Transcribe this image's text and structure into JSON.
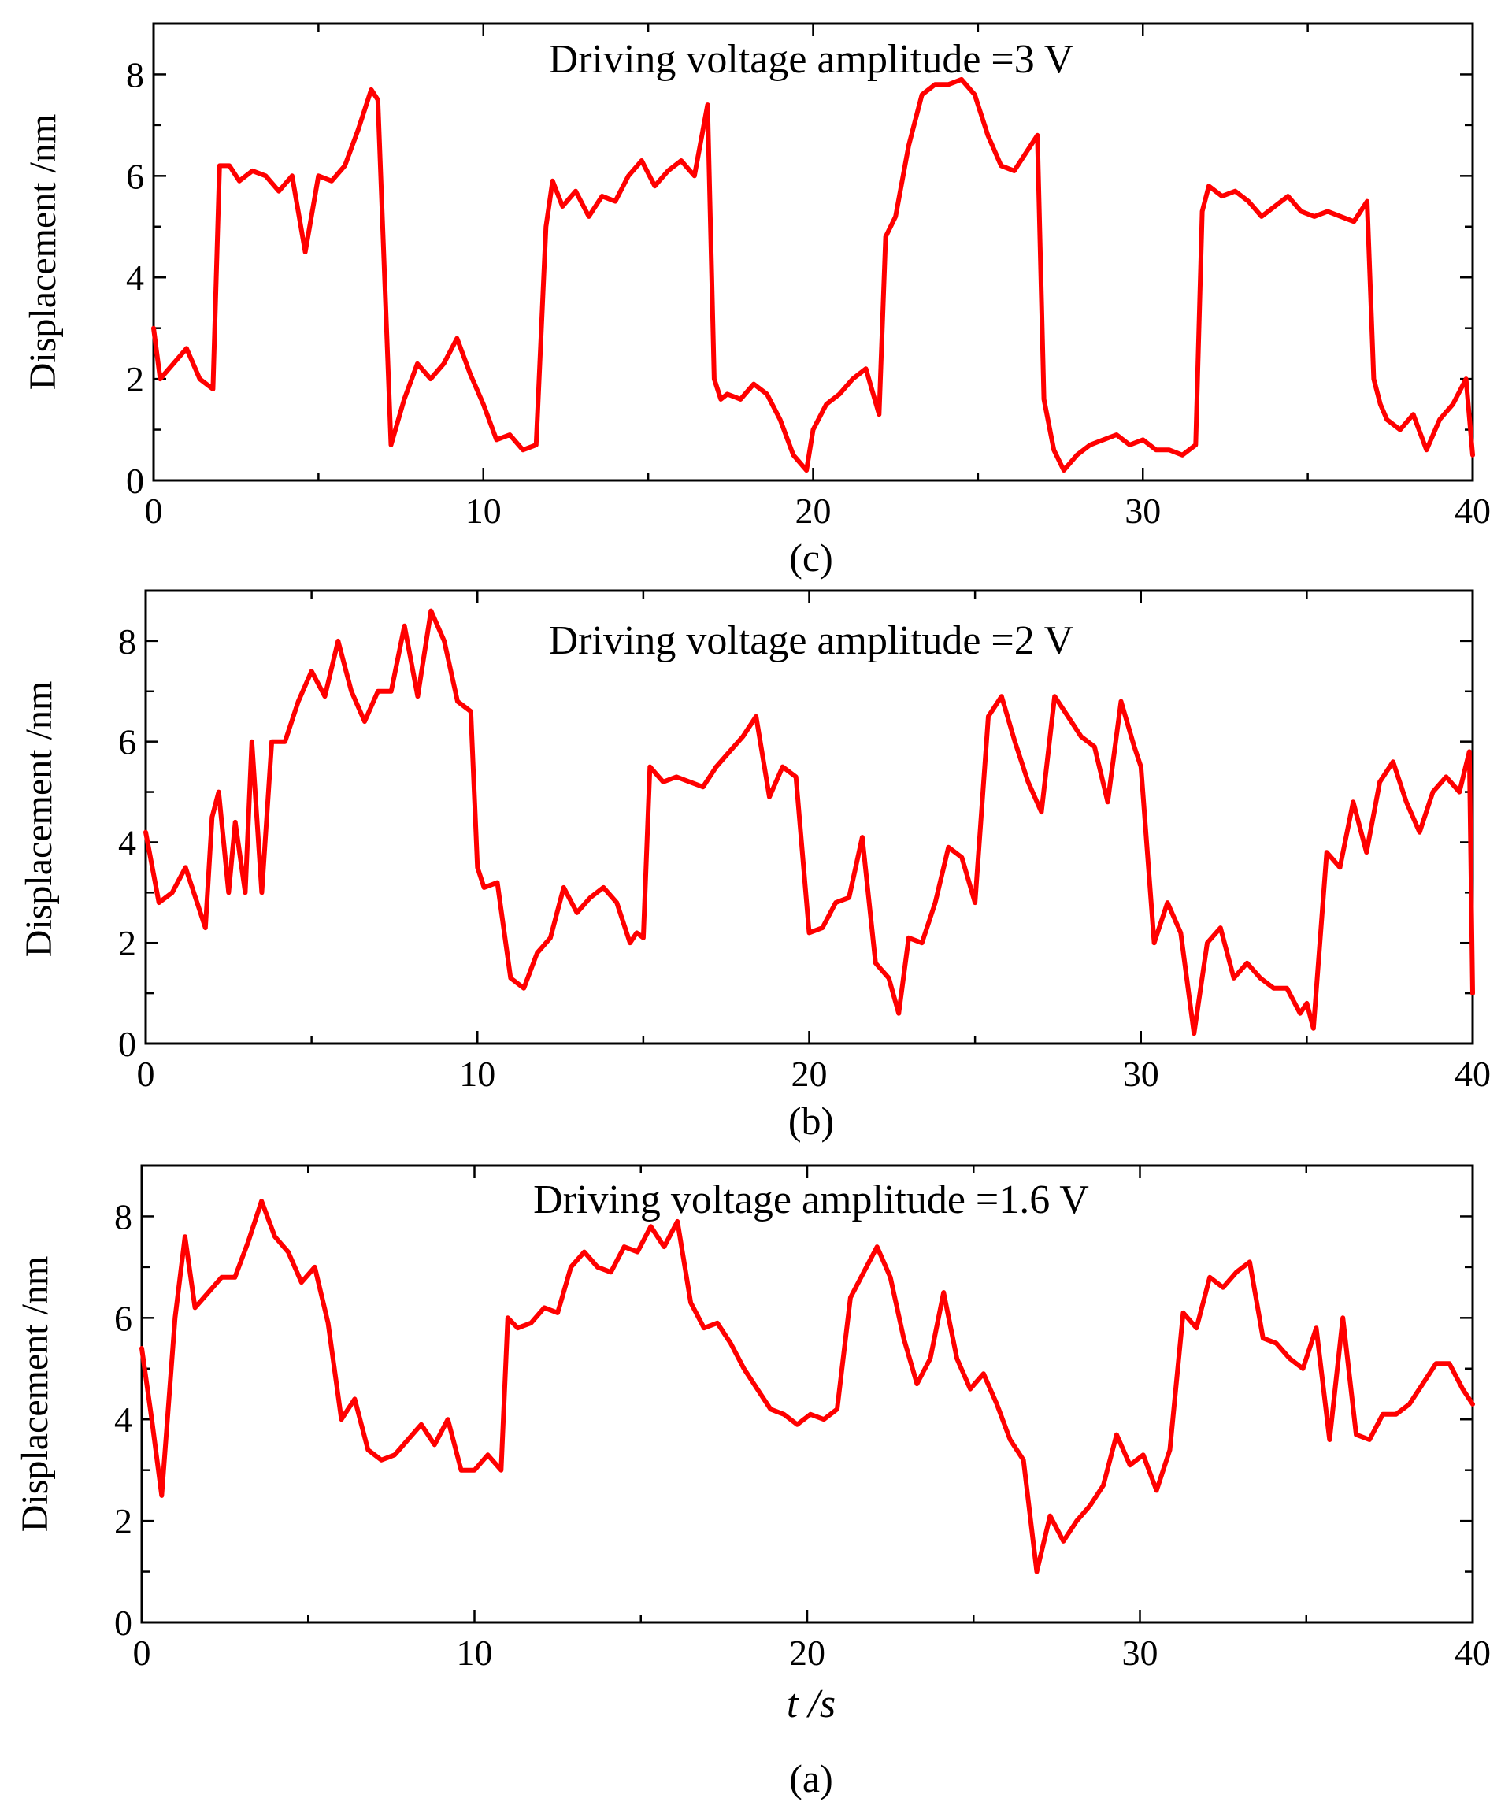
{
  "chart_data": [
    {
      "panel": "(c)",
      "type": "line",
      "title": "Driving voltage amplitude =3 V",
      "xlabel": "",
      "ylabel": "Displacement /nm",
      "xlim": [
        0,
        40
      ],
      "ylim": [
        0,
        9
      ],
      "xticks": [
        0,
        10,
        20,
        30,
        40
      ],
      "yticks": [
        0,
        2,
        4,
        6,
        8
      ],
      "color": "#ff0000",
      "series": [
        {
          "name": "displacement",
          "x": [
            0,
            0.2,
            0.6,
            1.0,
            1.4,
            1.8,
            2.0,
            2.3,
            2.6,
            3.0,
            3.4,
            3.8,
            4.2,
            4.6,
            5.0,
            5.4,
            5.8,
            6.2,
            6.6,
            6.8,
            7.2,
            7.6,
            8.0,
            8.4,
            8.8,
            9.2,
            9.6,
            10.0,
            10.4,
            10.8,
            11.2,
            11.6,
            11.9,
            12.1,
            12.4,
            12.8,
            13.2,
            13.6,
            14.0,
            14.4,
            14.8,
            15.2,
            15.6,
            16.0,
            16.4,
            16.8,
            17.0,
            17.2,
            17.4,
            17.8,
            18.2,
            18.6,
            19.0,
            19.4,
            19.8,
            20.0,
            20.4,
            20.8,
            21.2,
            21.6,
            22.0,
            22.2,
            22.5,
            22.9,
            23.3,
            23.7,
            24.1,
            24.5,
            24.9,
            25.3,
            25.7,
            26.1,
            26.5,
            26.8,
            27.0,
            27.3,
            27.6,
            28.0,
            28.4,
            28.8,
            29.2,
            29.6,
            30.0,
            30.4,
            30.8,
            31.2,
            31.6,
            31.8,
            32.0,
            32.4,
            32.8,
            33.2,
            33.6,
            34.0,
            34.4,
            34.8,
            35.2,
            35.6,
            36.0,
            36.4,
            36.8,
            37.0,
            37.2,
            37.4,
            37.8,
            38.2,
            38.6,
            39.0,
            39.4,
            39.8,
            40.0
          ],
          "y": [
            3.0,
            2.0,
            2.3,
            2.6,
            2.0,
            1.8,
            6.2,
            6.2,
            5.9,
            6.1,
            6.0,
            5.7,
            6.0,
            4.5,
            6.0,
            5.9,
            6.2,
            6.9,
            7.7,
            7.5,
            0.7,
            1.6,
            2.3,
            2.0,
            2.3,
            2.8,
            2.1,
            1.5,
            0.8,
            0.9,
            0.6,
            0.7,
            5.0,
            5.9,
            5.4,
            5.7,
            5.2,
            5.6,
            5.5,
            6.0,
            6.3,
            5.8,
            6.1,
            6.3,
            6.0,
            7.4,
            2.0,
            1.6,
            1.7,
            1.6,
            1.9,
            1.7,
            1.2,
            0.5,
            0.2,
            1.0,
            1.5,
            1.7,
            2.0,
            2.2,
            1.3,
            4.8,
            5.2,
            6.6,
            7.6,
            7.8,
            7.8,
            7.9,
            7.6,
            6.8,
            6.2,
            6.1,
            6.5,
            6.8,
            1.6,
            0.6,
            0.2,
            0.5,
            0.7,
            0.8,
            0.9,
            0.7,
            0.8,
            0.6,
            0.6,
            0.5,
            0.7,
            5.3,
            5.8,
            5.6,
            5.7,
            5.5,
            5.2,
            5.4,
            5.6,
            5.3,
            5.2,
            5.3,
            5.2,
            5.1,
            5.5,
            2.0,
            1.5,
            1.2,
            1.0,
            1.3,
            0.6,
            1.2,
            1.5,
            2.0,
            0.5
          ]
        }
      ]
    },
    {
      "panel": "(b)",
      "type": "line",
      "title": "Driving voltage amplitude =2 V",
      "xlabel": "",
      "ylabel": "Displacement /nm",
      "xlim": [
        0,
        40
      ],
      "ylim": [
        0,
        9
      ],
      "xticks": [
        0,
        10,
        20,
        30,
        40
      ],
      "yticks": [
        0,
        2,
        4,
        6,
        8
      ],
      "color": "#ff0000",
      "series": [
        {
          "name": "displacement",
          "x": [
            0,
            0.4,
            0.8,
            1.2,
            1.6,
            1.8,
            2.0,
            2.2,
            2.5,
            2.7,
            3.0,
            3.2,
            3.5,
            3.8,
            4.2,
            4.6,
            5.0,
            5.4,
            5.8,
            6.2,
            6.6,
            7.0,
            7.4,
            7.8,
            8.2,
            8.6,
            9.0,
            9.4,
            9.8,
            10.0,
            10.2,
            10.6,
            11.0,
            11.4,
            11.8,
            12.2,
            12.6,
            13.0,
            13.4,
            13.8,
            14.2,
            14.6,
            14.8,
            15.0,
            15.2,
            15.6,
            16.0,
            16.4,
            16.8,
            17.2,
            17.6,
            18.0,
            18.4,
            18.8,
            19.2,
            19.6,
            20.0,
            20.4,
            20.8,
            21.2,
            21.6,
            22.0,
            22.4,
            22.7,
            23.0,
            23.4,
            23.8,
            24.2,
            24.6,
            25.0,
            25.4,
            25.8,
            26.2,
            26.6,
            27.0,
            27.4,
            27.8,
            28.2,
            28.6,
            29.0,
            29.4,
            29.8,
            30.0,
            30.4,
            30.8,
            31.2,
            31.6,
            32.0,
            32.4,
            32.8,
            33.2,
            33.6,
            34.0,
            34.4,
            34.8,
            35.0,
            35.2,
            35.6,
            36.0,
            36.4,
            36.8,
            37.2,
            37.6,
            38.0,
            38.4,
            38.8,
            39.2,
            39.6,
            39.9,
            40.0
          ],
          "y": [
            4.2,
            2.8,
            3.0,
            3.5,
            2.7,
            2.3,
            4.5,
            5.0,
            3.0,
            4.4,
            3.0,
            6.0,
            3.0,
            6.0,
            6.0,
            6.8,
            7.4,
            6.9,
            8.0,
            7.0,
            6.4,
            7.0,
            7.0,
            8.3,
            6.9,
            8.6,
            8.0,
            6.8,
            6.6,
            3.5,
            3.1,
            3.2,
            1.3,
            1.1,
            1.8,
            2.1,
            3.1,
            2.6,
            2.9,
            3.1,
            2.8,
            2.0,
            2.2,
            2.1,
            5.5,
            5.2,
            5.3,
            5.2,
            5.1,
            5.5,
            5.8,
            6.1,
            6.5,
            4.9,
            5.5,
            5.3,
            2.2,
            2.3,
            2.8,
            2.9,
            4.1,
            1.6,
            1.3,
            0.6,
            2.1,
            2.0,
            2.8,
            3.9,
            3.7,
            2.8,
            6.5,
            6.9,
            6.0,
            5.2,
            4.6,
            6.9,
            6.5,
            6.1,
            5.9,
            4.8,
            6.8,
            5.9,
            5.5,
            2.0,
            2.8,
            2.2,
            0.2,
            2.0,
            2.3,
            1.3,
            1.6,
            1.3,
            1.1,
            1.1,
            0.6,
            0.8,
            0.3,
            3.8,
            3.5,
            4.8,
            3.8,
            5.2,
            5.6,
            4.8,
            4.2,
            5.0,
            5.3,
            5.0,
            5.8,
            1.0
          ]
        }
      ]
    },
    {
      "panel": "(a)",
      "type": "line",
      "title": "Driving voltage amplitude =1.6 V",
      "xlabel": "t /s",
      "ylabel": "Displacement /nm",
      "xlim": [
        0,
        40
      ],
      "ylim": [
        0,
        9
      ],
      "xticks": [
        0,
        10,
        20,
        30,
        40
      ],
      "yticks": [
        0,
        2,
        4,
        6,
        8
      ],
      "color": "#ff0000",
      "series": [
        {
          "name": "displacement",
          "x": [
            0,
            0.3,
            0.6,
            1.0,
            1.3,
            1.6,
            2.0,
            2.4,
            2.8,
            3.2,
            3.6,
            4.0,
            4.4,
            4.8,
            5.2,
            5.6,
            6.0,
            6.4,
            6.8,
            7.2,
            7.6,
            8.0,
            8.4,
            8.8,
            9.2,
            9.6,
            10.0,
            10.4,
            10.8,
            11.0,
            11.3,
            11.7,
            12.1,
            12.5,
            12.9,
            13.3,
            13.7,
            14.1,
            14.5,
            14.9,
            15.3,
            15.7,
            16.1,
            16.5,
            16.9,
            17.3,
            17.7,
            18.1,
            18.5,
            18.9,
            19.3,
            19.7,
            20.1,
            20.5,
            20.9,
            21.3,
            21.7,
            22.1,
            22.5,
            22.9,
            23.3,
            23.7,
            24.1,
            24.5,
            24.9,
            25.3,
            25.7,
            26.1,
            26.5,
            26.9,
            27.3,
            27.7,
            28.1,
            28.5,
            28.9,
            29.3,
            29.7,
            30.1,
            30.5,
            30.9,
            31.3,
            31.7,
            32.1,
            32.5,
            32.9,
            33.3,
            33.7,
            34.1,
            34.5,
            34.9,
            35.3,
            35.7,
            36.1,
            36.5,
            36.9,
            37.3,
            37.7,
            38.1,
            38.5,
            38.9,
            39.3,
            39.7,
            40.0
          ],
          "y": [
            5.4,
            4.0,
            2.5,
            6.0,
            7.6,
            6.2,
            6.5,
            6.8,
            6.8,
            7.5,
            8.3,
            7.6,
            7.3,
            6.7,
            7.0,
            5.9,
            4.0,
            4.4,
            3.4,
            3.2,
            3.3,
            3.6,
            3.9,
            3.5,
            4.0,
            3.0,
            3.0,
            3.3,
            3.0,
            6.0,
            5.8,
            5.9,
            6.2,
            6.1,
            7.0,
            7.3,
            7.0,
            6.9,
            7.4,
            7.3,
            7.8,
            7.4,
            7.9,
            6.3,
            5.8,
            5.9,
            5.5,
            5.0,
            4.6,
            4.2,
            4.1,
            3.9,
            4.1,
            4.0,
            4.2,
            6.4,
            6.9,
            7.4,
            6.8,
            5.6,
            4.7,
            5.2,
            6.5,
            5.2,
            4.6,
            4.9,
            4.3,
            3.6,
            3.2,
            1.0,
            2.1,
            1.6,
            2.0,
            2.3,
            2.7,
            3.7,
            3.1,
            3.3,
            2.6,
            3.4,
            6.1,
            5.8,
            6.8,
            6.6,
            6.9,
            7.1,
            5.6,
            5.5,
            5.2,
            5.0,
            5.8,
            3.6,
            6.0,
            3.7,
            3.6,
            4.1,
            4.1,
            4.3,
            4.7,
            5.1,
            5.1,
            4.6,
            4.3
          ]
        }
      ]
    }
  ]
}
